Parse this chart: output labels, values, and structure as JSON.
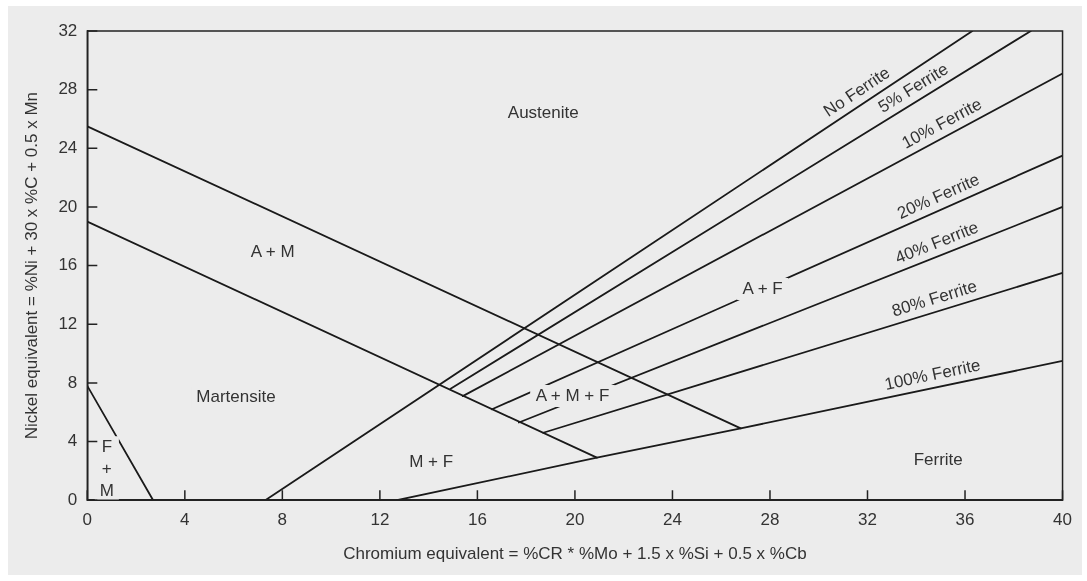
{
  "chart_data": {
    "type": "line",
    "xlabel": "Chromium equivalent = %CR * %Mo + 1.5 x %Si + 0.5 x %Cb",
    "ylabel": "Nickel equivalent = %Ni + 30 x %C + 0.5 x Mn",
    "xlim": [
      0,
      40
    ],
    "xticks": [
      0,
      4,
      8,
      12,
      16,
      20,
      24,
      28,
      32,
      36,
      40
    ],
    "ylim": [
      0,
      32
    ],
    "yticks": [
      0,
      4,
      8,
      12,
      16,
      20,
      24,
      28,
      32
    ],
    "legend": false,
    "marker": "none",
    "line_style": "solid",
    "series": [
      {
        "color": "#1a1a1a",
        "x": [
          0,
          26.8
        ],
        "values": [
          25.5,
          4.9
        ]
      },
      {
        "color": "#1a1a1a",
        "x": [
          0,
          20.9
        ],
        "values": [
          19,
          2.9
        ]
      },
      {
        "color": "#1a1a1a",
        "x": [
          0,
          2.7
        ],
        "values": [
          7.8,
          0
        ]
      },
      {
        "name": "No Ferrite",
        "color": "#1a1a1a",
        "x": [
          7.3,
          36.3
        ],
        "values": [
          0,
          32
        ]
      },
      {
        "name": "5% Ferrite",
        "color": "#1a1a1a",
        "x": [
          14.9,
          38.7
        ],
        "values": [
          7.6,
          32
        ]
      },
      {
        "name": "10% Ferrite",
        "color": "#1a1a1a",
        "x": [
          15.4,
          40
        ],
        "values": [
          7.1,
          29.1
        ]
      },
      {
        "name": "20% Ferrite",
        "color": "#1a1a1a",
        "x": [
          16.6,
          40
        ],
        "values": [
          6.2,
          23.5
        ]
      },
      {
        "name": "40% Ferrite",
        "color": "#1a1a1a",
        "x": [
          17.7,
          40
        ],
        "values": [
          5.3,
          20
        ]
      },
      {
        "name": "80% Ferrite",
        "color": "#1a1a1a",
        "x": [
          18.7,
          40
        ],
        "values": [
          4.6,
          15.5
        ]
      },
      {
        "name": "100% Ferrite",
        "color": "#1a1a1a",
        "x": [
          12.7,
          20.9,
          26.8,
          40
        ],
        "values": [
          0,
          2.9,
          4.9,
          9.5
        ]
      }
    ],
    "annotations": [
      "Austenite",
      "A + M",
      "Martensite",
      "F\n+\nM",
      "M + F",
      "A + M + F",
      "A + F",
      "Ferrite"
    ]
  }
}
